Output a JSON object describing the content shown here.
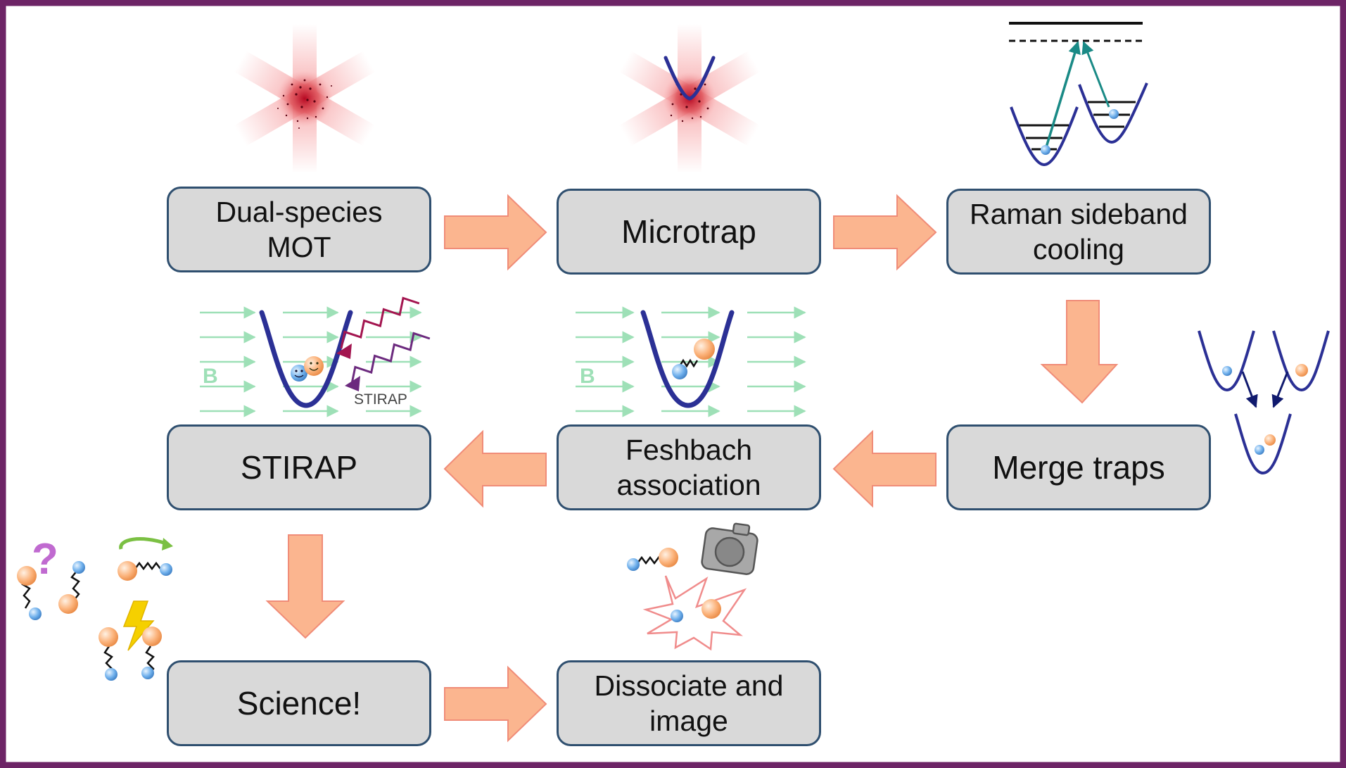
{
  "steps": {
    "mot": {
      "label": "Dual-species\nMOT"
    },
    "microtrap": {
      "label": "Microtrap"
    },
    "raman": {
      "label": "Raman sideband\ncooling"
    },
    "merge": {
      "label": "Merge traps"
    },
    "feshbach": {
      "label": "Feshbach\nassociation"
    },
    "stirap": {
      "label": "STIRAP"
    },
    "science": {
      "label": "Science!"
    },
    "dissociate": {
      "label": "Dissociate and\nimage"
    }
  },
  "illustrations": {
    "magnetic_field_label": "B",
    "stirap_caption": "STIRAP",
    "question_mark": "?"
  },
  "colors": {
    "frame": "#6d2466",
    "box_fill": "#d9d9d9",
    "box_border": "#2f4f6f",
    "arrow": "#fbb58f",
    "arrow_edge": "#f08c78",
    "laser": "#f7a6a8",
    "trap": "#2b3095",
    "field_lines": "#9ee0b7",
    "teal_transition": "#1a8a86",
    "pump_beam": "#a3154f",
    "stokes_beam": "#6c2a7e"
  }
}
